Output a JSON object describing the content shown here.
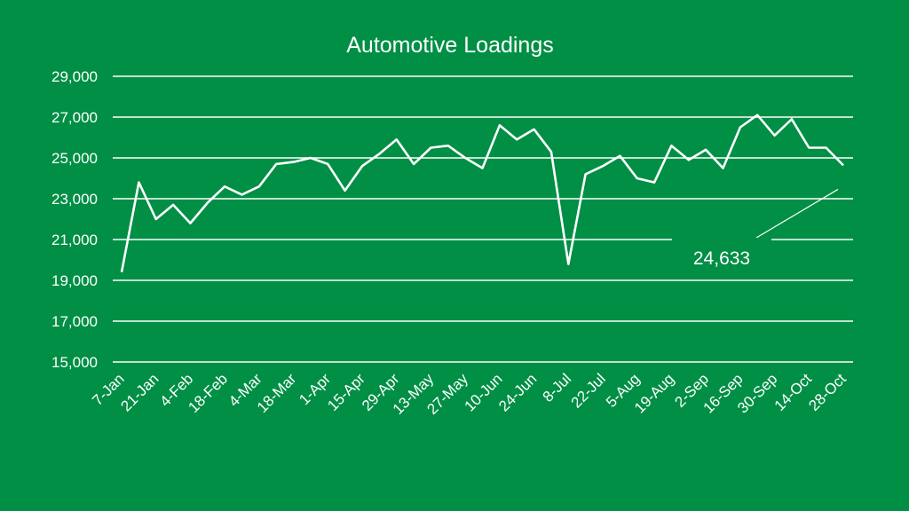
{
  "colors": {
    "background": "#008F45",
    "foreground": "#ffffff"
  },
  "chart_data": {
    "type": "line",
    "title": "Automotive Loadings",
    "xlabel": "",
    "ylabel": "",
    "ylim": [
      15000,
      29000
    ],
    "yticks": [
      "15,000",
      "17,000",
      "19,000",
      "21,000",
      "23,000",
      "25,000",
      "27,000",
      "29,000"
    ],
    "grid": true,
    "legend": "none",
    "xtick_labels": [
      "7-Jan",
      "21-Jan",
      "4-Feb",
      "18-Feb",
      "4-Mar",
      "18-Mar",
      "1-Apr",
      "15-Apr",
      "29-Apr",
      "13-May",
      "27-May",
      "10-Jun",
      "24-Jun",
      "8-Jul",
      "22-Jul",
      "5-Aug",
      "19-Aug",
      "2-Sep",
      "16-Sep",
      "30-Sep",
      "14-Oct",
      "28-Oct"
    ],
    "x": [
      "7-Jan",
      "14-Jan",
      "21-Jan",
      "28-Jan",
      "4-Feb",
      "11-Feb",
      "18-Feb",
      "25-Feb",
      "4-Mar",
      "11-Mar",
      "18-Mar",
      "25-Mar",
      "1-Apr",
      "8-Apr",
      "15-Apr",
      "22-Apr",
      "29-Apr",
      "6-May",
      "13-May",
      "20-May",
      "27-May",
      "3-Jun",
      "10-Jun",
      "17-Jun",
      "24-Jun",
      "1-Jul",
      "8-Jul",
      "15-Jul",
      "22-Jul",
      "29-Jul",
      "5-Aug",
      "12-Aug",
      "19-Aug",
      "26-Aug",
      "2-Sep",
      "9-Sep",
      "16-Sep",
      "23-Sep",
      "30-Sep",
      "7-Oct",
      "14-Oct",
      "21-Oct",
      "28-Oct"
    ],
    "series": [
      {
        "values": [
          19400,
          23800,
          22000,
          22700,
          21800,
          22800,
          23600,
          23200,
          23600,
          24700,
          24800,
          25000,
          24700,
          23400,
          24600,
          25200,
          25900,
          24700,
          25500,
          25600,
          25000,
          24500,
          26600,
          25900,
          26400,
          25300,
          19800,
          24200,
          24600,
          25100,
          24000,
          23800,
          25600,
          24900,
          25400,
          24500,
          26500,
          27100,
          26100,
          26900,
          25500,
          25500,
          24633
        ]
      }
    ],
    "annotations": [
      {
        "text": "24,633",
        "x": "28-Oct",
        "y": 24633
      }
    ]
  }
}
